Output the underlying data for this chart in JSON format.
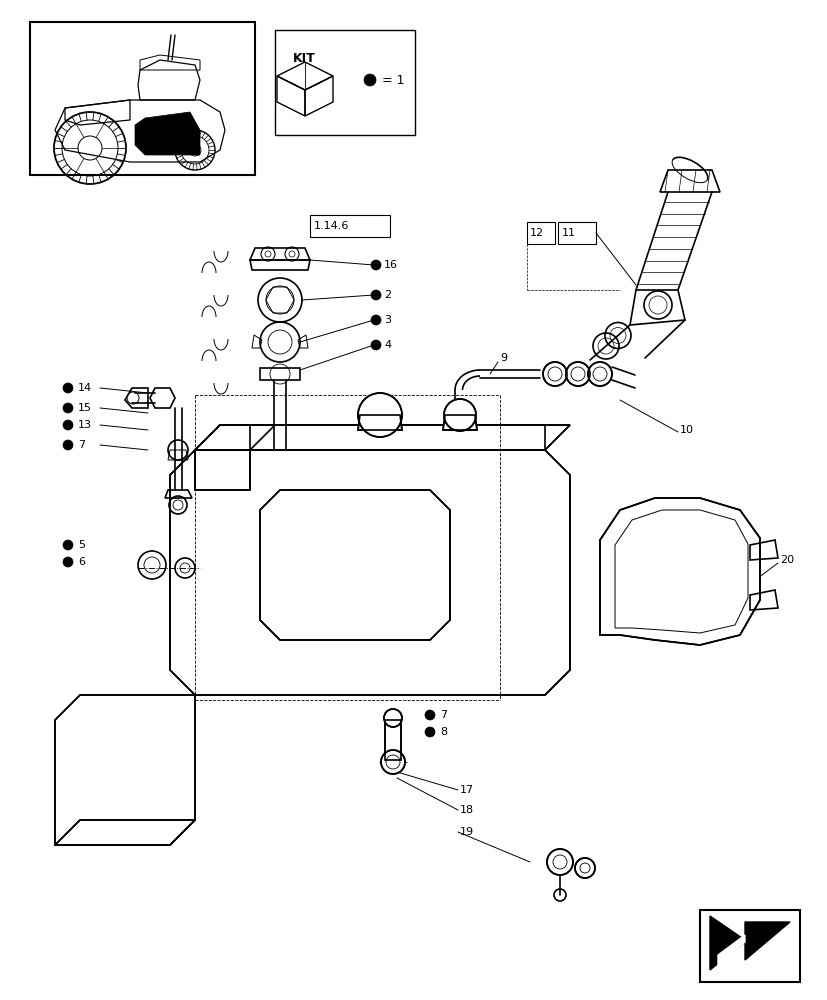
{
  "bg_color": "#ffffff",
  "line_color": "#000000",
  "fig_width": 8.28,
  "fig_height": 10.0,
  "dpi": 100,
  "lw_main": 1.2,
  "lw_thin": 0.7,
  "lw_med": 0.9
}
